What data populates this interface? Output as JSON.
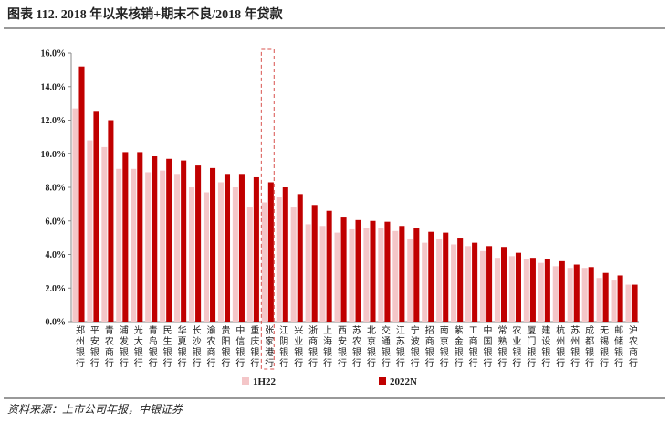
{
  "chart_data": {
    "type": "bar",
    "title": "图表 112. 2018 年以来核销+期末不良/2018 年贷款",
    "source": "资料来源：上市公司年报，中银证券",
    "categories": [
      "郑州银行",
      "平安银行",
      "青农商行",
      "浦发银行",
      "光大银行",
      "青岛银行",
      "民生银行",
      "华夏银行",
      "长沙银行",
      "渝农商行",
      "贵阳银行",
      "中信银行",
      "重庆银行",
      "张家港行",
      "江阴银行",
      "兴业银行",
      "浙商银行",
      "上海银行",
      "西安银行",
      "苏农银行",
      "北京银行",
      "交通银行",
      "江苏银行",
      "宁波银行",
      "招商银行",
      "南京银行",
      "紫金银行",
      "工商银行",
      "中国银行",
      "常熟银行",
      "农业银行",
      "厦门银行",
      "建设银行",
      "杭州银行",
      "苏州银行",
      "成都银行",
      "无锡银行",
      "邮储银行",
      "沪农商行"
    ],
    "series": [
      {
        "name": "1H22",
        "color": "#f4c6c8",
        "values": [
          12.7,
          10.8,
          10.4,
          9.1,
          9.1,
          8.9,
          9.0,
          8.8,
          8.0,
          7.7,
          8.3,
          8.0,
          6.8,
          7.1,
          7.4,
          6.8,
          5.8,
          5.7,
          5.3,
          5.5,
          5.6,
          5.6,
          5.4,
          4.9,
          4.7,
          4.9,
          4.6,
          4.5,
          4.2,
          3.8,
          3.9,
          3.7,
          3.5,
          3.3,
          3.2,
          3.2,
          2.6,
          2.5,
          2.2
        ]
      },
      {
        "name": "2022N",
        "color": "#c00000",
        "values": [
          15.2,
          12.5,
          12.0,
          10.1,
          10.1,
          9.85,
          9.7,
          9.6,
          9.3,
          9.15,
          8.8,
          8.8,
          8.6,
          8.3,
          8.0,
          7.6,
          6.95,
          6.6,
          6.2,
          6.05,
          6.0,
          5.95,
          5.7,
          5.55,
          5.35,
          5.3,
          4.95,
          4.7,
          4.5,
          4.45,
          4.1,
          3.8,
          3.7,
          3.6,
          3.4,
          3.25,
          2.9,
          2.75,
          2.2
        ]
      }
    ],
    "ylim": [
      0,
      16
    ],
    "yticks": [
      {
        "value": 0,
        "label": "0.0%"
      },
      {
        "value": 2,
        "label": "2.0%"
      },
      {
        "value": 4,
        "label": "4.0%"
      },
      {
        "value": 6,
        "label": "6.0%"
      },
      {
        "value": 8,
        "label": "8.0%"
      },
      {
        "value": 10,
        "label": "10.0%"
      },
      {
        "value": 12,
        "label": "12.0%"
      },
      {
        "value": 14,
        "label": "14.0%"
      },
      {
        "value": 16,
        "label": "16.0%"
      }
    ],
    "grid": false,
    "legend": "bottom"
  }
}
